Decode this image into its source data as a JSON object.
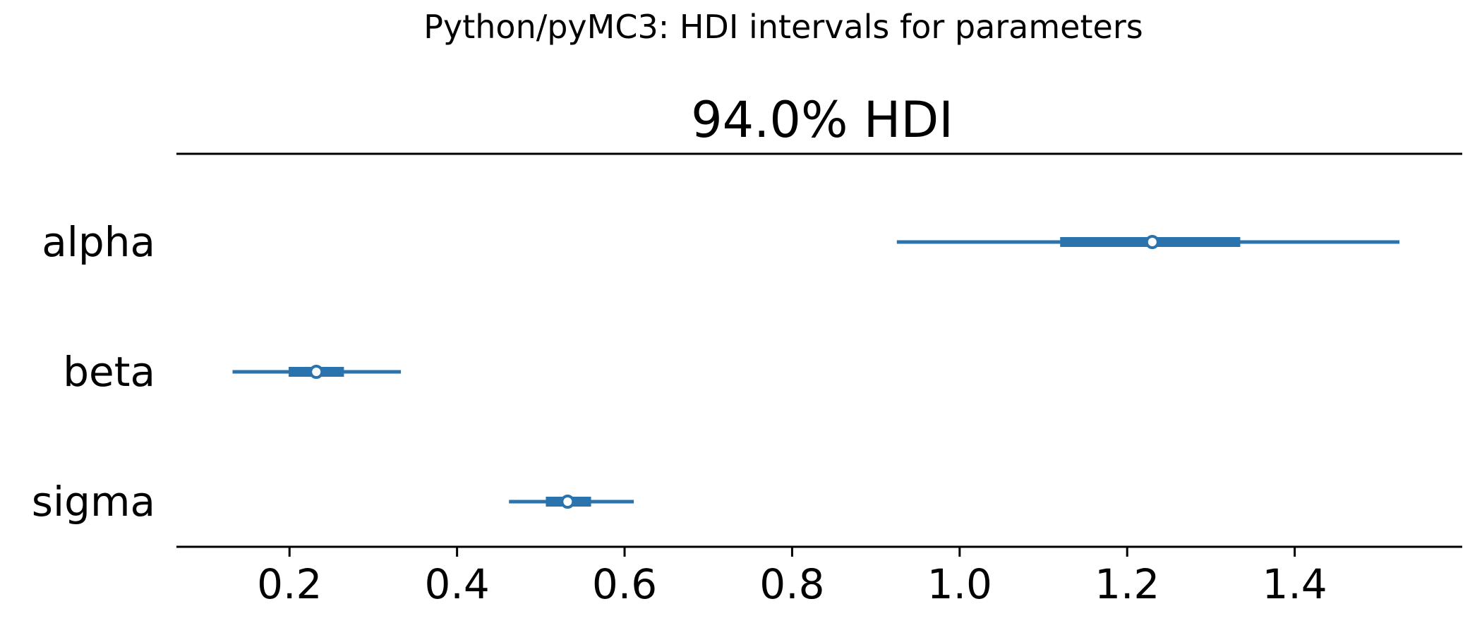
{
  "chart_data": {
    "type": "forest",
    "title": "Python/pyMC3: HDI intervals for parameters",
    "subtitle": "94.0% HDI",
    "xlabel": "",
    "ylabel": "",
    "xlim": [
      0.065,
      1.6
    ],
    "xticks": [
      0.2,
      0.4,
      0.6,
      0.8,
      1.0,
      1.2,
      1.4
    ],
    "xtick_labels": [
      "0.2",
      "0.4",
      "0.6",
      "0.8",
      "1.0",
      "1.2",
      "1.4"
    ],
    "grid": false,
    "color": "#2a73ad",
    "parameters": [
      {
        "name": "alpha",
        "point": 1.23,
        "hdi_94": [
          0.925,
          1.525
        ],
        "iqr": [
          1.12,
          1.335
        ]
      },
      {
        "name": "beta",
        "point": 0.232,
        "hdi_94": [
          0.132,
          0.333
        ],
        "iqr": [
          0.199,
          0.265
        ]
      },
      {
        "name": "sigma",
        "point": 0.532,
        "hdi_94": [
          0.462,
          0.611
        ],
        "iqr": [
          0.506,
          0.56
        ]
      }
    ]
  }
}
